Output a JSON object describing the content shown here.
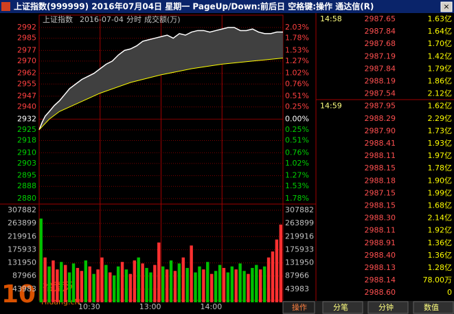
{
  "window": {
    "title": "上证指数(999999) 2016年07月04日 星期一 PageUp/Down:前后日 空格键:操作 通达信(R)"
  },
  "chart": {
    "header": {
      "name": "上证指数",
      "date": "2016-07-04",
      "mode": "分时",
      "unit": "成交额(万)"
    },
    "xlim": [
      0,
      240
    ],
    "price_ticks": [
      2992,
      2985,
      2977,
      2970,
      2962,
      2955,
      2947,
      2940,
      2932,
      2925,
      2918,
      2910,
      2903,
      2895,
      2888,
      2880
    ],
    "pct_labels": [
      "2.03%",
      "1.78%",
      "1.53%",
      "1.27%",
      "1.02%",
      "0.76%",
      "0.51%",
      "0.25%",
      "0.00%",
      "0.25%",
      "0.51%",
      "0.76%",
      "1.02%",
      "1.27%",
      "1.53%",
      "1.78%"
    ],
    "volume_ticks": [
      307882,
      263899,
      219916,
      175933,
      131950,
      87966,
      43983
    ],
    "time_labels": [
      {
        "value": 60,
        "label": "10:30"
      },
      {
        "value": 120,
        "label": "13:00"
      },
      {
        "value": 180,
        "label": "14:00"
      }
    ],
    "price": {
      "color": "#ffffff",
      "x": [
        0,
        3,
        6,
        10,
        15,
        20,
        25,
        30,
        36,
        42,
        48,
        54,
        60,
        66,
        72,
        78,
        84,
        90,
        96,
        102,
        108,
        114,
        120,
        126,
        132,
        138,
        144,
        150,
        156,
        162,
        168,
        174,
        180,
        186,
        192,
        198,
        204,
        210,
        216,
        222,
        228,
        234,
        240
      ],
      "values": [
        2925,
        2930,
        2934,
        2937,
        2941,
        2944,
        2948,
        2952,
        2955,
        2958,
        2960,
        2962,
        2965,
        2968,
        2970,
        2974,
        2977,
        2978,
        2980,
        2983,
        2984,
        2985,
        2986,
        2987,
        2985,
        2988,
        2987,
        2989,
        2990,
        2990,
        2989,
        2990,
        2991,
        2992,
        2992,
        2990,
        2990,
        2991,
        2989,
        2988,
        2988,
        2989,
        2989
      ]
    },
    "average": {
      "color": "#ffff00",
      "x": [
        0,
        10,
        20,
        40,
        60,
        90,
        120,
        150,
        180,
        210,
        240
      ],
      "values": [
        2925,
        2932,
        2937,
        2943,
        2949,
        2956,
        2961,
        2965,
        2968,
        2970,
        2972
      ]
    },
    "volume": {
      "values": [
        280000,
        150000,
        120000,
        140000,
        110000,
        135000,
        125000,
        100000,
        130000,
        115000,
        105000,
        140000,
        120000,
        95000,
        110000,
        150000,
        125000,
        100000,
        90000,
        120000,
        135000,
        110000,
        95000,
        140000,
        150000,
        130000,
        115000,
        100000,
        125000,
        200000,
        120000,
        110000,
        140000,
        105000,
        130000,
        150000,
        115000,
        190000,
        100000,
        120000,
        110000,
        135000,
        95000,
        105000,
        125000,
        115000,
        100000,
        120000,
        110000,
        130000,
        105000,
        95000,
        115000,
        125000,
        110000,
        120000,
        150000,
        170000,
        210000,
        260000
      ],
      "colors": [
        "#00c000",
        "#ff3030",
        "#00c000",
        "#ff3030",
        "#ff3030",
        "#00c000",
        "#ff3030",
        "#00c000",
        "#00c000",
        "#ff3030",
        "#ff3030",
        "#00c000",
        "#ff3030",
        "#00c000",
        "#ff3030",
        "#ff3030",
        "#00c000",
        "#ff3030",
        "#00c000",
        "#00c000",
        "#ff3030",
        "#00c000",
        "#ff3030",
        "#ff3030",
        "#00c000",
        "#ff3030",
        "#00c000",
        "#00c000",
        "#ff3030",
        "#ff3030",
        "#00c000",
        "#ff3030",
        "#00c000",
        "#ff3030",
        "#00c000",
        "#ff3030",
        "#00c000",
        "#ff3030",
        "#00c000",
        "#00c000",
        "#ff3030",
        "#00c000",
        "#ff3030",
        "#00c000",
        "#00c000",
        "#ff3030",
        "#00c000",
        "#00c000",
        "#ff3030",
        "#00c000",
        "#00c000",
        "#ff3030",
        "#00c000",
        "#00c000",
        "#ff3030",
        "#00c000",
        "#ff3030",
        "#ff3030",
        "#ff3030",
        "#ff3030"
      ]
    }
  },
  "ticks": [
    {
      "time": "14:58",
      "price": "2987.65",
      "volume": "1.63亿"
    },
    {
      "price": "2987.84",
      "volume": "1.64亿"
    },
    {
      "price": "2987.68",
      "volume": "1.70亿"
    },
    {
      "price": "2987.19",
      "volume": "1.42亿"
    },
    {
      "price": "2987.84",
      "volume": "1.79亿"
    },
    {
      "price": "2988.19",
      "volume": "1.86亿"
    },
    {
      "price": "2987.54",
      "volume": "2.12亿"
    },
    {
      "time": "14:59",
      "price": "2987.95",
      "volume": "1.62亿"
    },
    {
      "price": "2988.29",
      "volume": "2.29亿"
    },
    {
      "price": "2987.90",
      "volume": "1.73亿"
    },
    {
      "price": "2988.41",
      "volume": "1.93亿"
    },
    {
      "price": "2988.11",
      "volume": "1.97亿"
    },
    {
      "price": "2988.15",
      "volume": "1.78亿"
    },
    {
      "price": "2988.18",
      "volume": "1.90亿"
    },
    {
      "price": "2987.15",
      "volume": "1.99亿"
    },
    {
      "price": "2988.15",
      "volume": "1.68亿"
    },
    {
      "price": "2988.30",
      "volume": "2.14亿"
    },
    {
      "price": "2988.11",
      "volume": "1.92亿"
    },
    {
      "price": "2988.91",
      "volume": "1.36亿"
    },
    {
      "price": "2988.40",
      "volume": "1.36亿"
    },
    {
      "price": "2988.13",
      "volume": "1.28亿"
    },
    {
      "price": "2988.14",
      "volume": "78.00万"
    },
    {
      "price": "2988.60",
      "volume": "0"
    }
  ],
  "tabs": [
    "操作",
    "分笔",
    "分钟",
    "数值"
  ],
  "watermark": {
    "number": "10",
    "name": "拾荒网",
    "site": "Hiuang.cN"
  }
}
